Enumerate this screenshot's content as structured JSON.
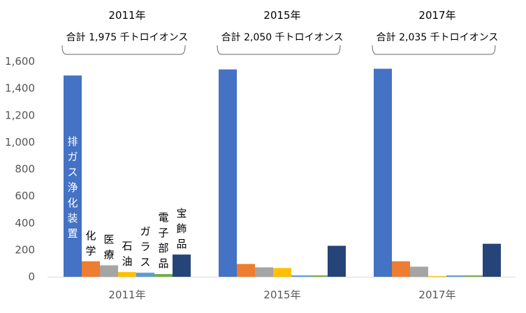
{
  "chart_data": {
    "type": "bar",
    "categories": [
      "2011年",
      "2015年",
      "2017年"
    ],
    "group_titles": [
      "2011年",
      "2015年",
      "2017年"
    ],
    "totals": [
      "合計 1,975 千トロイオンス",
      "合計 2,050 千トロイオンス",
      "合計 2,035 千トロイオンス"
    ],
    "series": [
      {
        "name": "排ガス浄化装置",
        "color": "#4472C4",
        "values": [
          1495,
          1540,
          1545
        ]
      },
      {
        "name": "化学",
        "color": "#ED7D31",
        "values": [
          115,
          95,
          115
        ]
      },
      {
        "name": "医療",
        "color": "#A5A5A5",
        "values": [
          85,
          70,
          75
        ]
      },
      {
        "name": "石油",
        "color": "#FFC000",
        "values": [
          35,
          65,
          5
        ]
      },
      {
        "name": "ガラス",
        "color": "#5B9BD5",
        "values": [
          30,
          10,
          10
        ]
      },
      {
        "name": "電子部品",
        "color": "#70AD47",
        "values": [
          20,
          10,
          10
        ]
      },
      {
        "name": "宝飾品",
        "color": "#264478",
        "values": [
          165,
          230,
          245
        ]
      }
    ],
    "ylim": [
      0,
      1600
    ],
    "yticks": [
      0,
      200,
      400,
      600,
      800,
      1000,
      1200,
      1400,
      1600
    ],
    "ytick_labels": [
      "0",
      "200",
      "400",
      "600",
      "800",
      "1,000",
      "1,200",
      "1,400",
      "1,600"
    ],
    "grid": false,
    "legend": "none",
    "xlabel": "",
    "ylabel": ""
  }
}
